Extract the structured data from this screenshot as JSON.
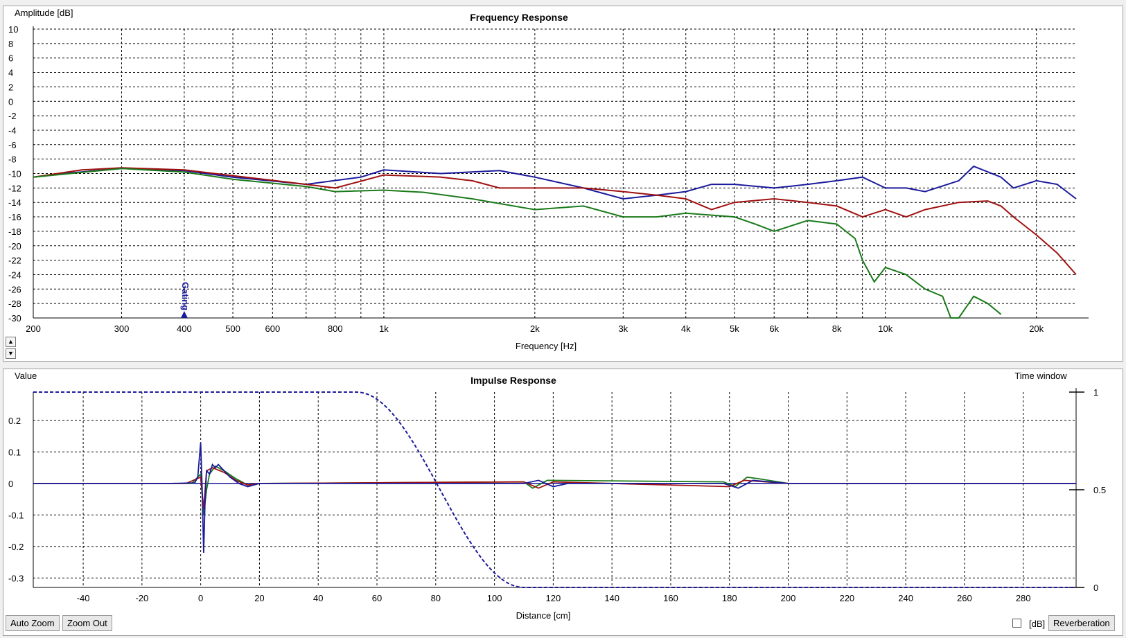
{
  "frequency_panel": {
    "title": "Frequency Response",
    "ylabel": "Amplitude [dB]",
    "xlabel": "Frequency [Hz]",
    "gating_marker": "Gating",
    "spin_up": "▲",
    "spin_down": "▼"
  },
  "impulse_panel": {
    "title": "Impulse Response",
    "ylabel": "Value",
    "xlabel": "Distance [cm]",
    "right_label": "Time window"
  },
  "toolbar": {
    "auto_zoom": "Auto Zoom",
    "zoom_out": "Zoom Out",
    "db_label": "[dB]",
    "db_checked": false,
    "reverberation": "Reverberation"
  },
  "colors": {
    "blue": "#1a1a9c",
    "red": "#a01010",
    "green": "#1a7a1a"
  },
  "chart_data": [
    {
      "type": "line",
      "title": "Frequency Response",
      "xlabel": "Frequency [Hz]",
      "ylabel": "Amplitude [dB]",
      "xscale": "log",
      "xlim": [
        200,
        24000
      ],
      "ylim": [
        -30,
        10
      ],
      "grid": true,
      "x_ticks": [
        200,
        300,
        400,
        500,
        600,
        800,
        1000,
        2000,
        3000,
        4000,
        5000,
        6000,
        8000,
        10000,
        20000
      ],
      "x_tick_labels": [
        "200",
        "300",
        "400",
        "500",
        "600",
        "800",
        "1k",
        "2k",
        "3k",
        "4k",
        "5k",
        "6k",
        "8k",
        "10k",
        "20k"
      ],
      "y_ticks": [
        10,
        8,
        6,
        4,
        2,
        0,
        -2,
        -4,
        -6,
        -8,
        -10,
        -12,
        -14,
        -16,
        -18,
        -20,
        -22,
        -24,
        -26,
        -28,
        -30
      ],
      "gating_freq": 400,
      "series": [
        {
          "color": "blue",
          "points": [
            [
              200,
              -10.5
            ],
            [
              230,
              -10
            ],
            [
              300,
              -9.3
            ],
            [
              400,
              -9.6
            ],
            [
              500,
              -10.5
            ],
            [
              700,
              -11.5
            ],
            [
              900,
              -10.5
            ],
            [
              1000,
              -9.5
            ],
            [
              1300,
              -10
            ],
            [
              1700,
              -9.6
            ],
            [
              2000,
              -10.5
            ],
            [
              2500,
              -12
            ],
            [
              3000,
              -13.5
            ],
            [
              3500,
              -13
            ],
            [
              4000,
              -12.5
            ],
            [
              4500,
              -11.5
            ],
            [
              5000,
              -11.5
            ],
            [
              6000,
              -12
            ],
            [
              7000,
              -11.5
            ],
            [
              8000,
              -11
            ],
            [
              9000,
              -10.5
            ],
            [
              10000,
              -12
            ],
            [
              11000,
              -12
            ],
            [
              12000,
              -12.5
            ],
            [
              14000,
              -11
            ],
            [
              15000,
              -9
            ],
            [
              17000,
              -10.5
            ],
            [
              18000,
              -12
            ],
            [
              20000,
              -11
            ],
            [
              22000,
              -11.5
            ],
            [
              24000,
              -13.5
            ]
          ]
        },
        {
          "color": "red",
          "points": [
            [
              200,
              -10.5
            ],
            [
              250,
              -9.5
            ],
            [
              300,
              -9.2
            ],
            [
              400,
              -9.5
            ],
            [
              500,
              -10.3
            ],
            [
              700,
              -11.5
            ],
            [
              800,
              -12
            ],
            [
              1000,
              -10.2
            ],
            [
              1300,
              -10.5
            ],
            [
              1500,
              -11
            ],
            [
              1700,
              -12
            ],
            [
              2000,
              -12
            ],
            [
              2500,
              -12
            ],
            [
              3000,
              -12.5
            ],
            [
              3500,
              -13
            ],
            [
              4000,
              -13.5
            ],
            [
              4500,
              -15
            ],
            [
              5000,
              -14
            ],
            [
              6000,
              -13.5
            ],
            [
              7000,
              -14
            ],
            [
              8000,
              -14.5
            ],
            [
              9000,
              -16
            ],
            [
              10000,
              -15
            ],
            [
              11000,
              -16
            ],
            [
              12000,
              -15
            ],
            [
              14000,
              -14
            ],
            [
              16000,
              -13.8
            ],
            [
              17000,
              -14.5
            ],
            [
              18000,
              -16
            ],
            [
              20000,
              -18.5
            ],
            [
              22000,
              -21
            ],
            [
              24000,
              -24
            ]
          ]
        },
        {
          "color": "green",
          "points": [
            [
              200,
              -10.5
            ],
            [
              300,
              -9.3
            ],
            [
              400,
              -9.8
            ],
            [
              500,
              -10.8
            ],
            [
              700,
              -11.8
            ],
            [
              800,
              -12.5
            ],
            [
              1000,
              -12.3
            ],
            [
              1200,
              -12.6
            ],
            [
              1500,
              -13.5
            ],
            [
              2000,
              -15
            ],
            [
              2500,
              -14.5
            ],
            [
              3000,
              -16
            ],
            [
              3500,
              -16
            ],
            [
              4000,
              -15.5
            ],
            [
              5000,
              -16
            ],
            [
              5500,
              -17
            ],
            [
              6000,
              -18
            ],
            [
              7000,
              -16.5
            ],
            [
              8000,
              -17
            ],
            [
              8700,
              -19
            ],
            [
              9000,
              -22
            ],
            [
              9500,
              -25
            ],
            [
              10000,
              -23
            ],
            [
              11000,
              -24
            ],
            [
              12000,
              -26
            ],
            [
              13000,
              -27
            ],
            [
              13500,
              -30
            ],
            [
              14000,
              -30
            ],
            [
              15000,
              -27
            ],
            [
              16000,
              -28
            ],
            [
              17000,
              -29.5
            ]
          ]
        }
      ]
    },
    {
      "type": "line",
      "title": "Impulse Response",
      "xlabel": "Distance [cm]",
      "ylabel": "Value",
      "xlim": [
        -57,
        298
      ],
      "ylim": [
        -0.33,
        0.29
      ],
      "grid": true,
      "x_ticks": [
        -40,
        -20,
        0,
        20,
        40,
        60,
        80,
        100,
        120,
        140,
        160,
        180,
        200,
        220,
        240,
        260,
        280
      ],
      "y_ticks": [
        0.2,
        0.1,
        0,
        -0.1,
        -0.2,
        -0.3
      ],
      "y_tick_labels": [
        "0.2",
        "0.1",
        "0",
        "-0.1",
        "-0.2",
        "-0.3"
      ],
      "y2_ticks": [
        1,
        0.5,
        0
      ],
      "y2_tick_labels": [
        "1",
        "0.5",
        "0"
      ],
      "y2lim": [
        0,
        1
      ],
      "time_window": {
        "plateau_end": 53,
        "zero_at": 110
      },
      "series": [
        {
          "color": "blue",
          "points": [
            [
              -57,
              0
            ],
            [
              -10,
              0
            ],
            [
              -2,
              0.002
            ],
            [
              -1,
              0.02
            ],
            [
              0,
              0.13
            ],
            [
              0.5,
              -0.02
            ],
            [
              1,
              -0.22
            ],
            [
              1.5,
              -0.05
            ],
            [
              2,
              0.04
            ],
            [
              3,
              0.03
            ],
            [
              4,
              0.06
            ],
            [
              5,
              0.05
            ],
            [
              6,
              0.06
            ],
            [
              8,
              0.04
            ],
            [
              10,
              0.02
            ],
            [
              13,
              0.0
            ],
            [
              16,
              -0.01
            ],
            [
              20,
              0
            ],
            [
              110,
              0
            ],
            [
              115,
              0.01
            ],
            [
              120,
              -0.01
            ],
            [
              125,
              0
            ],
            [
              178,
              0
            ],
            [
              183,
              -0.015
            ],
            [
              188,
              0.01
            ],
            [
              200,
              0
            ],
            [
              298,
              0
            ]
          ]
        },
        {
          "color": "red",
          "points": [
            [
              -57,
              0
            ],
            [
              -5,
              0
            ],
            [
              0,
              0.02
            ],
            [
              1,
              -0.08
            ],
            [
              2,
              0.04
            ],
            [
              4,
              0.05
            ],
            [
              8,
              0.035
            ],
            [
              12,
              0.01
            ],
            [
              16,
              -0.005
            ],
            [
              20,
              0
            ],
            [
              110,
              0.005
            ],
            [
              115,
              -0.015
            ],
            [
              120,
              0.005
            ],
            [
              180,
              -0.01
            ],
            [
              185,
              0.01
            ],
            [
              200,
              0
            ],
            [
              298,
              0
            ]
          ]
        },
        {
          "color": "green",
          "points": [
            [
              -57,
              0
            ],
            [
              -3,
              0
            ],
            [
              0,
              0.03
            ],
            [
              1,
              -0.1
            ],
            [
              2,
              -0.02
            ],
            [
              3,
              0.03
            ],
            [
              5,
              0.055
            ],
            [
              8,
              0.04
            ],
            [
              12,
              0.015
            ],
            [
              16,
              -0.005
            ],
            [
              20,
              0
            ],
            [
              110,
              0.005
            ],
            [
              113,
              -0.015
            ],
            [
              118,
              0.01
            ],
            [
              178,
              0.005
            ],
            [
              182,
              -0.01
            ],
            [
              186,
              0.02
            ],
            [
              190,
              0.015
            ],
            [
              200,
              0
            ],
            [
              298,
              0
            ]
          ]
        }
      ]
    }
  ]
}
